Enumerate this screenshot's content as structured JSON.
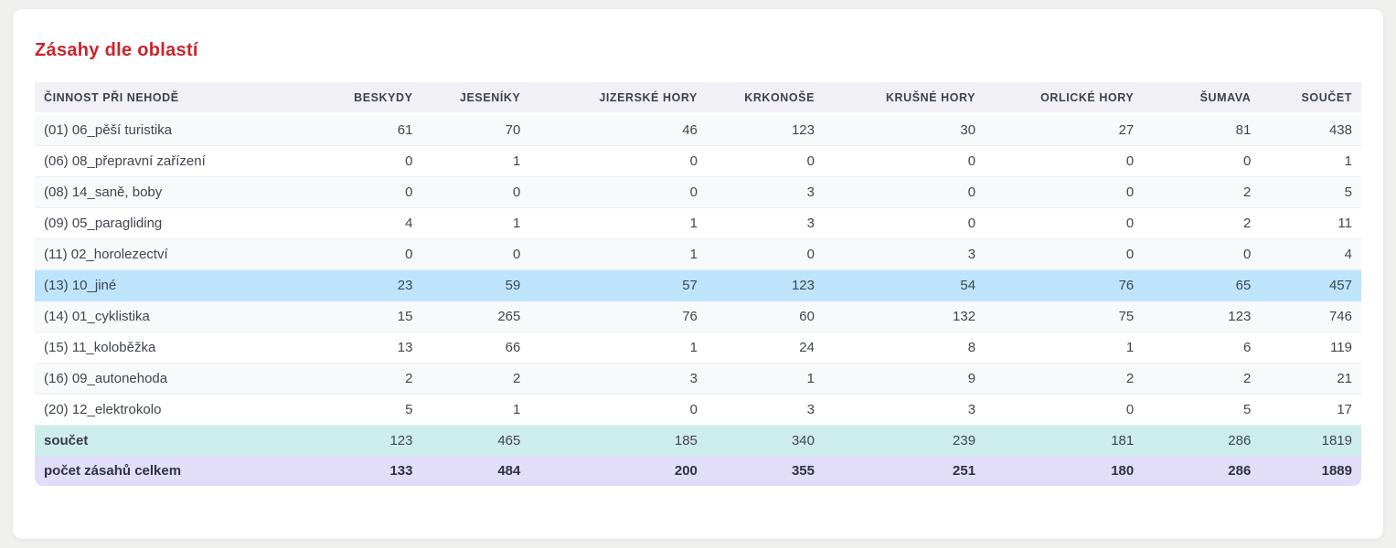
{
  "page": {
    "title": "Zásahy dle oblastí"
  },
  "colors": {
    "title_red": "#c8252c",
    "header_bg": "#f1f1f5",
    "row_stripe": "#f8f9fb",
    "highlight_row_blue": "#bde4fa",
    "total_row_teal": "#cdedea",
    "grand_total_row_purple": "#e2ddf9",
    "page_background": "#f0f0ef",
    "card_background": "#ffffff"
  },
  "chart_data": {
    "type": "table",
    "title": "Zásahy dle oblastí",
    "columns": [
      "ČINNOST PŘI NEHODĚ",
      "BESKYDY",
      "JESENÍKY",
      "JIZERSKÉ HORY",
      "KRKONOŠE",
      "KRUŠNÉ HORY",
      "ORLICKÉ HORY",
      "ŠUMAVA",
      "SOUČET"
    ],
    "rows": [
      {
        "label": "(01) 06_pěší turistika",
        "values": [
          61,
          70,
          46,
          123,
          30,
          27,
          81,
          438
        ],
        "highlight": "none"
      },
      {
        "label": "(06) 08_přepravní zařízení",
        "values": [
          0,
          1,
          0,
          0,
          0,
          0,
          0,
          1
        ],
        "highlight": "none"
      },
      {
        "label": "(08) 14_saně, boby",
        "values": [
          0,
          0,
          0,
          3,
          0,
          0,
          2,
          5
        ],
        "highlight": "none"
      },
      {
        "label": "(09) 05_paragliding",
        "values": [
          4,
          1,
          1,
          3,
          0,
          0,
          2,
          11
        ],
        "highlight": "none"
      },
      {
        "label": "(11) 02_horolezectví",
        "values": [
          0,
          0,
          1,
          0,
          3,
          0,
          0,
          4
        ],
        "highlight": "none"
      },
      {
        "label": "(13) 10_jiné",
        "values": [
          23,
          59,
          57,
          123,
          54,
          76,
          65,
          457
        ],
        "highlight": "blue"
      },
      {
        "label": "(14) 01_cyklistika",
        "values": [
          15,
          265,
          76,
          60,
          132,
          75,
          123,
          746
        ],
        "highlight": "none"
      },
      {
        "label": "(15) 11_koloběžka",
        "values": [
          13,
          66,
          1,
          24,
          8,
          1,
          6,
          119
        ],
        "highlight": "none"
      },
      {
        "label": "(16) 09_autonehoda",
        "values": [
          2,
          2,
          3,
          1,
          9,
          2,
          2,
          21
        ],
        "highlight": "none"
      },
      {
        "label": "(20) 12_elektrokolo",
        "values": [
          5,
          1,
          0,
          3,
          3,
          0,
          5,
          17
        ],
        "highlight": "none"
      }
    ],
    "footer_rows": [
      {
        "label": "součet",
        "values": [
          123,
          465,
          185,
          340,
          239,
          181,
          286,
          1819
        ],
        "highlight": "teal"
      },
      {
        "label": "počet zásahů celkem",
        "values": [
          133,
          484,
          200,
          355,
          251,
          180,
          286,
          1889
        ],
        "highlight": "purple"
      }
    ]
  }
}
